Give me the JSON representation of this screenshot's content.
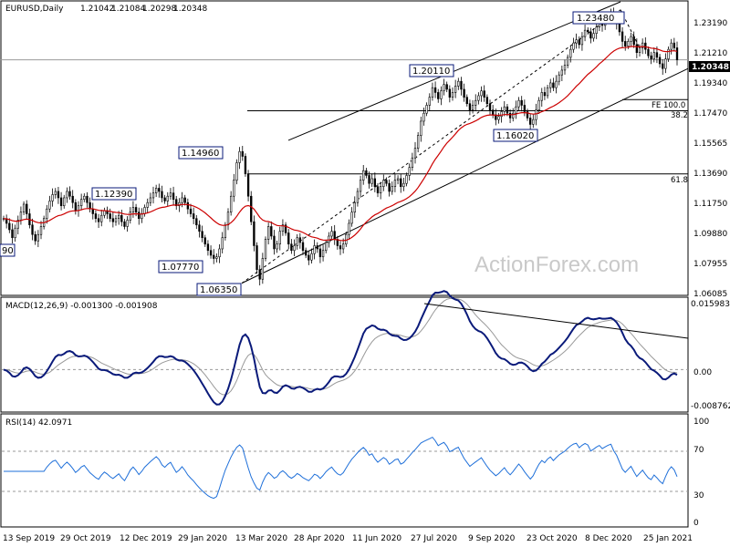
{
  "chart_data": [
    {
      "type": "candlestick",
      "panel": "price",
      "header": {
        "symbol": "EURUSD,Daily",
        "open": "1.21042",
        "high": "1.21084",
        "low": "1.20298",
        "close": "1.20348"
      },
      "current_price_tag": "1.20348",
      "y_tick_labels": [
        "1.23190",
        "1.21210",
        "1.19340",
        "1.17470",
        "1.15565",
        "1.13690",
        "1.11750",
        "1.09880",
        "1.07955",
        "1.06085"
      ],
      "x_tick_labels": [
        "13 Sep 2019",
        "29 Oct 2019",
        "12 Dec 2019",
        "29 Jan 2020",
        "13 Mar 2020",
        "28 Apr 2020",
        "11 Jun 2020",
        "27 Jul 2020",
        "9 Sep 2020",
        "23 Oct 2020",
        "8 Dec 2020",
        "25 Jan 2021"
      ],
      "annotations": [
        "1.23480",
        "1.20110",
        "1.16020",
        "1.14960",
        "1.12390",
        "1.07770",
        "1.06350"
      ],
      "left_edge_label": "90",
      "fibonacci_labels": [
        "FE 100.0",
        "38.2",
        "61.8"
      ],
      "watermark": "ActionForex.com",
      "series": [
        {
          "name": "close",
          "values": [
            1.104,
            1.101,
            1.097,
            1.092,
            1.098,
            1.103,
            1.108,
            1.113,
            1.107,
            1.1,
            1.094,
            1.09,
            1.094,
            1.099,
            1.104,
            1.11,
            1.115,
            1.119,
            1.121,
            1.117,
            1.112,
            1.117,
            1.121,
            1.118,
            1.114,
            1.109,
            1.112,
            1.116,
            1.118,
            1.114,
            1.11,
            1.107,
            1.104,
            1.102,
            1.106,
            1.109,
            1.107,
            1.104,
            1.102,
            1.104,
            1.106,
            1.102,
            1.099,
            1.103,
            1.108,
            1.111,
            1.108,
            1.104,
            1.107,
            1.111,
            1.114,
            1.117,
            1.12,
            1.123,
            1.121,
            1.117,
            1.115,
            1.118,
            1.12,
            1.116,
            1.112,
            1.114,
            1.117,
            1.114,
            1.11,
            1.107,
            1.104,
            1.1,
            1.096,
            1.092,
            1.088,
            1.084,
            1.081,
            1.079,
            1.08,
            1.085,
            1.092,
            1.1,
            1.108,
            1.118,
            1.128,
            1.139,
            1.146,
            1.143,
            1.132,
            1.118,
            1.102,
            1.087,
            1.072,
            1.066,
            1.079,
            1.091,
            1.099,
            1.093,
            1.085,
            1.088,
            1.096,
            1.1,
            1.095,
            1.088,
            1.084,
            1.087,
            1.092,
            1.089,
            1.084,
            1.081,
            1.078,
            1.082,
            1.087,
            1.085,
            1.08,
            1.084,
            1.089,
            1.093,
            1.096,
            1.091,
            1.087,
            1.085,
            1.088,
            1.094,
            1.101,
            1.108,
            1.114,
            1.121,
            1.128,
            1.134,
            1.131,
            1.126,
            1.129,
            1.124,
            1.12,
            1.124,
            1.128,
            1.126,
            1.121,
            1.124,
            1.128,
            1.129,
            1.124,
            1.126,
            1.131,
            1.136,
            1.142,
            1.148,
            1.156,
            1.165,
            1.17,
            1.175,
            1.18,
            1.186,
            1.183,
            1.179,
            1.184,
            1.188,
            1.185,
            1.18,
            1.183,
            1.187,
            1.19,
            1.185,
            1.18,
            1.176,
            1.172,
            1.175,
            1.178,
            1.181,
            1.184,
            1.18,
            1.176,
            1.172,
            1.169,
            1.166,
            1.168,
            1.171,
            1.174,
            1.17,
            1.167,
            1.17,
            1.174,
            1.178,
            1.175,
            1.171,
            1.167,
            1.163,
            1.166,
            1.172,
            1.178,
            1.183,
            1.181,
            1.186,
            1.189,
            1.186,
            1.19,
            1.194,
            1.197,
            1.2,
            1.205,
            1.21,
            1.214,
            1.216,
            1.213,
            1.218,
            1.222,
            1.221,
            1.217,
            1.22,
            1.224,
            1.227,
            1.225,
            1.228,
            1.231,
            1.233,
            1.229,
            1.226,
            1.221,
            1.215,
            1.212,
            1.215,
            1.218,
            1.213,
            1.208,
            1.211,
            1.214,
            1.21,
            1.206,
            1.204,
            1.208,
            1.205,
            1.201,
            1.198,
            1.204,
            1.21,
            1.214,
            1.211,
            1.2035
          ]
        }
      ],
      "moving_average_color": "#cc0000",
      "candle_color": "#000000"
    },
    {
      "type": "line",
      "panel": "macd",
      "header": "MACD(12,26,9) -0.001300 -0.001908",
      "y_tick_labels": [
        "0.015983",
        "0.00",
        "0.00",
        "-0.008762"
      ],
      "series": [
        {
          "name": "main",
          "color": "#0a1a7a"
        },
        {
          "name": "signal",
          "color": "#999999"
        }
      ]
    },
    {
      "type": "line",
      "panel": "rsi",
      "header": "RSI(14) 42.0971",
      "y_tick_labels": [
        "100",
        "70",
        "30",
        "0"
      ],
      "levels": [
        70,
        30
      ],
      "series": [
        {
          "name": "rsi",
          "color": "#1e6fd9"
        }
      ]
    }
  ]
}
